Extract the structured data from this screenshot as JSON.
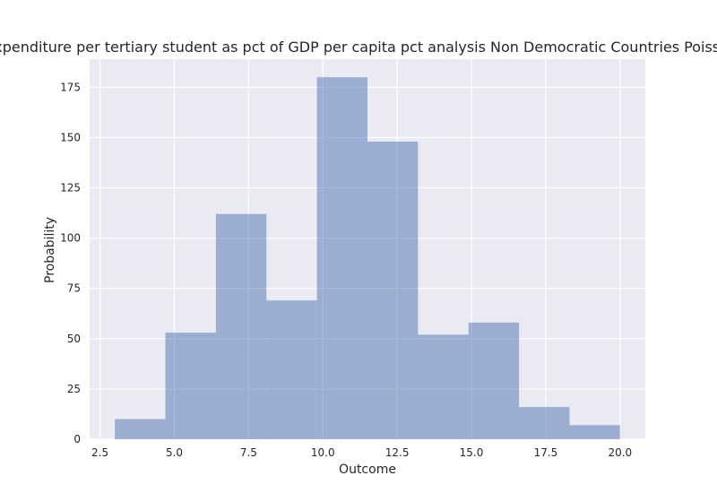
{
  "chart_data": {
    "type": "bar",
    "title": "nt expenditure per tertiary student as pct of GDP per capita pct analysis Non Democratic Countries Poisson P",
    "xlabel": "Outcome",
    "ylabel": "Probability",
    "xlim": [
      2.15,
      20.85
    ],
    "ylim": [
      0,
      189
    ],
    "xticks": [
      2.5,
      5.0,
      7.5,
      10.0,
      12.5,
      15.0,
      17.5,
      20.0
    ],
    "xtick_labels": [
      "2.5",
      "5.0",
      "7.5",
      "10.0",
      "12.5",
      "15.0",
      "17.5",
      "20.0"
    ],
    "yticks": [
      0,
      25,
      50,
      75,
      100,
      125,
      150,
      175
    ],
    "ytick_labels": [
      "0",
      "25",
      "50",
      "75",
      "100",
      "125",
      "150",
      "175"
    ],
    "bin_edges": [
      3.0,
      4.7,
      6.4,
      8.1,
      9.8,
      11.5,
      13.2,
      14.9,
      16.6,
      18.3,
      20.0
    ],
    "values": [
      10,
      53,
      112,
      69,
      180,
      148,
      52,
      58,
      16,
      7
    ],
    "bar_color": "#4c72b0",
    "grid": true
  }
}
